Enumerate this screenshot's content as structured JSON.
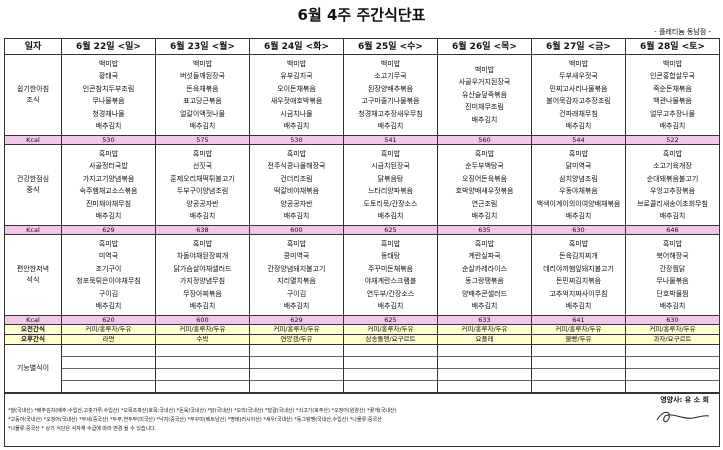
{
  "header": {
    "title": "6월 4주 주간식단표",
    "branch": "- 플레티늄 동남점 -"
  },
  "table": {
    "corner": "일자",
    "days": [
      "6월 22일 <일>",
      "6월 23일 <월>",
      "6월 24일 <화>",
      "6월 25일 <수>",
      "6월 26일 <목>",
      "6월 27일 <금>",
      "6월 28일 <토>"
    ],
    "meals": [
      {
        "label": [
          "쉽기한아침",
          "조식"
        ],
        "menus": [
          [
            "백미밥",
            "황태국",
            "인콘참치두부조림",
            "무나물볶음",
            "청경채나물",
            "배추김치"
          ],
          [
            "백미밥",
            "버섯들깨된장국",
            "돈육채볶음",
            "표고당근볶음",
            "얼갈이액젓나물",
            "배추김치"
          ],
          [
            "백미밥",
            "유부김치국",
            "오이돈채볶음",
            "새우젓애호박볶음",
            "시금치나물",
            "배추김치"
          ],
          [
            "백미밥",
            "소고기무국",
            "된장양배추볶음",
            "고구마줄기나물볶음",
            "청경채고추장새우무침",
            "배추김치"
          ],
          [
            "백미밥",
            "사골우거지된장국",
            "유산슬덮죽볶음",
            "진미채무조림",
            "배추김치"
          ],
          [
            "백미밥",
            "두부새우젓국",
            "민찌고사리나물볶음",
            "불어묵감자고추장조림",
            "건파래채무침",
            "배추김치"
          ],
          [
            "백미밥",
            "인콘홍합살무국",
            "죽순돈채볶음",
            "백관나물볶음",
            "얼무고추장나물",
            "배추김치"
          ]
        ],
        "kcal_label": "Kcal",
        "kcal": [
          "530",
          "575",
          "530",
          "541",
          "560",
          "544",
          "522"
        ]
      },
      {
        "label": [
          "건강한점심",
          "중식"
        ],
        "menus": [
          [
            "흑미밥",
            "사골정터국밥",
            "가지고기양념볶음",
            "숙주햄채교소스볶음",
            "진미채야채무침",
            "배추김치"
          ],
          [
            "흑미밥",
            "선짓국",
            "훈제오리채떡튀불고기",
            "두부구이양념조림",
            "양공공자반",
            "배추김치"
          ],
          [
            "흑미밥",
            "전주식콩나물해장국",
            "건더리조림",
            "떡갈비야채볶음",
            "양공공자반",
            "배추김치"
          ],
          [
            "흑미밥",
            "시금치된장국",
            "닭볶음탕",
            "느타리양파볶음",
            "도토리묵/간장소스",
            "배추김치"
          ],
          [
            "흑미밥",
            "순두부백탕국",
            "오징어돈육볶음",
            "호박양배새우젓볶음",
            "연근조림",
            "배추김치"
          ],
          [
            "흑미밥",
            "닭미역국",
            "삼치양념조림",
            "우동야채볶음",
            "백색이계이의이여양배채볶음",
            "배추김치"
          ],
          [
            "흑미밥",
            "소고기육개장",
            "순대돼볶음불고기",
            "우엉고추장볶음",
            "브로콜리새송이초회무침",
            "배추김치"
          ]
        ],
        "kcal_label": "Kcal",
        "kcal": [
          "629",
          "638",
          "600",
          "625",
          "635",
          "630",
          "646"
        ]
      },
      {
        "label": [
          "편안한저녁",
          "석식"
        ],
        "menus": [
          [
            "흑미밥",
            "미역국",
            "조기구이",
            "청포묵튀은이야채무침",
            "구이김",
            "배추김치"
          ],
          [
            "흑미밥",
            "차돌야채된장찌개",
            "닭가슴살야채샐러드",
            "가지정양념무침",
            "무장아찌볶음",
            "배추김치"
          ],
          [
            "흑미밥",
            "콩미역국",
            "간장양념돼지불고기",
            "지리멸치볶음",
            "구이김",
            "배추김치"
          ],
          [
            "흑미밥",
            "동태탕",
            "주꾸미돈채볶음",
            "야채계란스크램블",
            "연두부/간장소스",
            "배추김치"
          ],
          [
            "흑미밥",
            "계란실파국",
            "순살카레라이스",
            "동그랑땡볶음",
            "양배추콘샐러드",
            "배추김치"
          ],
          [
            "흑미밥",
            "돈육김치찌개",
            "데리야끼햄잎돼지불고기",
            "돈민찌김치볶음",
            "고추억지짜사이무침",
            "배추김치"
          ],
          [
            "흑미밥",
            "북어해장국",
            "간장찜닭",
            "무나물볶음",
            "단호박물찜",
            "배추김치"
          ]
        ],
        "kcal_label": "Kcal",
        "kcal": [
          "620",
          "600",
          "629",
          "625",
          "633",
          "641",
          "630"
        ]
      }
    ],
    "snacks": [
      {
        "label": "오전간식",
        "items": [
          "커피/홍루차/두유",
          "커피/홍루차/두유",
          "커피/홍루차/두유",
          "커피/홍루차/두유",
          "커피/홍루차/두유",
          "커피/홍루차/두유",
          "커피/홍루차/두유"
        ]
      },
      {
        "label": "오후간식",
        "items": [
          "라면",
          "수박",
          "연양갱/두유",
          "삼송돌맹/요구르트",
          "요플레",
          "불빵/두유",
          "과자/요구르트"
        ]
      }
    ],
    "special": {
      "label": "기능별식이"
    }
  },
  "footer": {
    "dietitian": "영양사: 유 소 희",
    "notes": [
      "*쌀(국내산) *배추김치(배추:수입산,고춧가루:수입산) *오목조흑산(호목:국내산) *돈육(국내산) *닭(국내산) *오리(국내산) *달걀(국내산) *쇠고기(호주산) *오징어(원양산) *꽃게(국내산)",
      "*고등어(국내산) *오징어(국내산) *부세(중국산) *두부,연두부(미국산) *낙지(중국산) *쭈꾸미(베트남산) *명태(러시아산) *새우(국내산) *동그랑땡(국내산,수입산) *나물류:중국산",
      "*나물류:중국산 * 상기 식단은 식자재 수급에 따라 변경 될 수 있습니다."
    ]
  }
}
